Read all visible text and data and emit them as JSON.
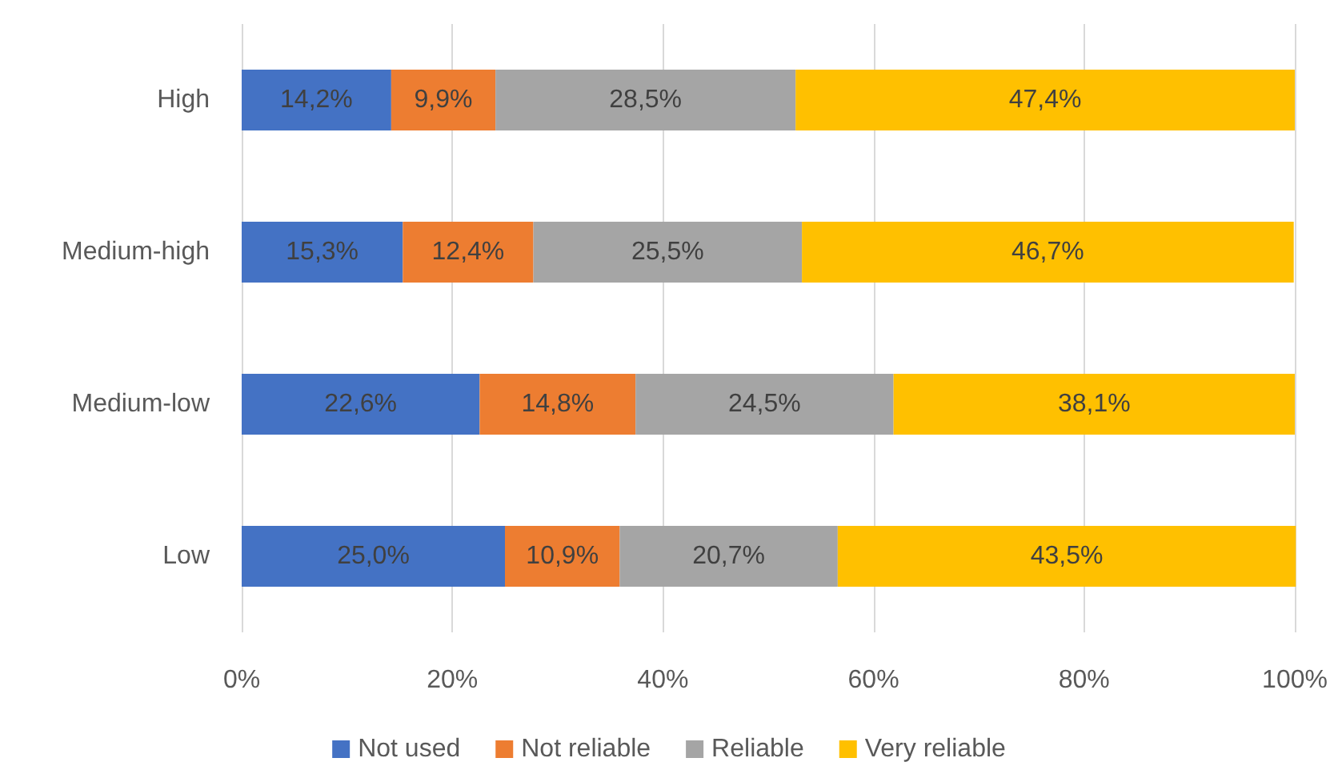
{
  "chart_data": {
    "type": "bar",
    "orientation": "horizontal",
    "stacked": true,
    "categories": [
      "High",
      "Medium-high",
      "Medium-low",
      "Low"
    ],
    "series": [
      {
        "name": "Not used",
        "color": "#4472c4",
        "values": [
          14.2,
          15.3,
          22.6,
          25.0
        ],
        "value_labels": [
          "14,2%",
          "15,3%",
          "22,6%",
          "25,0%"
        ]
      },
      {
        "name": "Not reliable",
        "color": "#ed7d31",
        "values": [
          9.9,
          12.4,
          14.8,
          10.9
        ],
        "value_labels": [
          "9,9%",
          "12,4%",
          "14,8%",
          "10,9%"
        ]
      },
      {
        "name": "Reliable",
        "color": "#a5a5a5",
        "values": [
          28.5,
          25.5,
          24.5,
          20.7
        ],
        "value_labels": [
          "28,5%",
          "25,5%",
          "24,5%",
          "20,7%"
        ]
      },
      {
        "name": "Very reliable",
        "color": "#ffc000",
        "values": [
          47.4,
          46.7,
          38.1,
          43.5
        ],
        "value_labels": [
          "47,4%",
          "46,7%",
          "38,1%",
          "43,5%"
        ]
      }
    ],
    "xlim": [
      0,
      100
    ],
    "xticks": [
      {
        "value": 0,
        "label": "0%"
      },
      {
        "value": 20,
        "label": "20%"
      },
      {
        "value": 40,
        "label": "40%"
      },
      {
        "value": 60,
        "label": "60%"
      },
      {
        "value": 80,
        "label": "80%"
      },
      {
        "value": 100,
        "label": "100%"
      }
    ],
    "grid": "x",
    "legend": "bottom"
  }
}
